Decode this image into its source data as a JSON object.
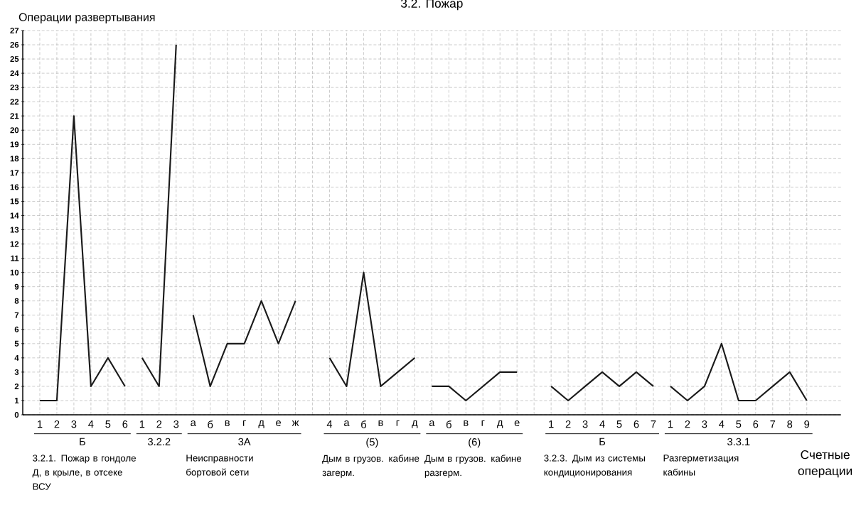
{
  "chart_data": {
    "type": "line",
    "title": "3.2. Пожар",
    "ylabel": "Операции развертывания",
    "xlabel": "Счетные операции",
    "categories": [
      "1",
      "2",
      "3",
      "4",
      "5",
      "6",
      "1",
      "2",
      "3",
      "а",
      "б",
      "в",
      "г",
      "д",
      "е",
      "ж",
      null,
      "4",
      "а",
      "б",
      "в",
      "г",
      "д",
      "а",
      "б",
      "в",
      "г",
      "д",
      "е",
      null,
      "1",
      "2",
      "3",
      "4",
      "5",
      "6",
      "7",
      "1",
      "2",
      "3",
      "4",
      "5",
      "6",
      "7",
      "8",
      "9"
    ],
    "series": [
      {
        "color": "#1a1a1a",
        "values": [
          1,
          1,
          21,
          2,
          4,
          2,
          null,
          null,
          null,
          null,
          null,
          null,
          null,
          null,
          null,
          null,
          null,
          null,
          null,
          null,
          null,
          null,
          null,
          null,
          null,
          null,
          null,
          null,
          null,
          null,
          null,
          null,
          null,
          null,
          null,
          null,
          null,
          null,
          null,
          null,
          null,
          null,
          null,
          null,
          null,
          null
        ]
      },
      {
        "color": "#1a1a1a",
        "values": [
          null,
          null,
          null,
          null,
          null,
          null,
          4,
          2,
          26,
          null,
          null,
          null,
          null,
          null,
          null,
          null,
          null,
          null,
          null,
          null,
          null,
          null,
          null,
          null,
          null,
          null,
          null,
          null,
          null,
          null,
          null,
          null,
          null,
          null,
          null,
          null,
          null,
          null,
          null,
          null,
          null,
          null,
          null,
          null,
          null,
          null
        ]
      },
      {
        "color": "#1a1a1a",
        "values": [
          null,
          null,
          null,
          null,
          null,
          null,
          null,
          null,
          null,
          7,
          2,
          5,
          5,
          8,
          5,
          8,
          null,
          null,
          null,
          null,
          null,
          null,
          null,
          null,
          null,
          null,
          null,
          null,
          null,
          null,
          null,
          null,
          null,
          null,
          null,
          null,
          null,
          null,
          null,
          null,
          null,
          null,
          null,
          null,
          null,
          null
        ]
      },
      {
        "color": "#1a1a1a",
        "values": [
          null,
          null,
          null,
          null,
          null,
          null,
          null,
          null,
          null,
          null,
          null,
          null,
          null,
          null,
          null,
          null,
          null,
          4,
          2,
          10,
          2,
          3,
          4,
          null,
          null,
          null,
          null,
          null,
          null,
          null,
          null,
          null,
          null,
          null,
          null,
          null,
          null,
          null,
          null,
          null,
          null,
          null,
          null,
          null,
          null,
          null
        ]
      },
      {
        "color": "#1a1a1a",
        "values": [
          null,
          null,
          null,
          null,
          null,
          null,
          null,
          null,
          null,
          null,
          null,
          null,
          null,
          null,
          null,
          null,
          null,
          null,
          null,
          null,
          null,
          null,
          null,
          2,
          2,
          1,
          2,
          3,
          3,
          null,
          null,
          null,
          null,
          null,
          null,
          null,
          null,
          null,
          null,
          null,
          null,
          null,
          null,
          null,
          null,
          null
        ]
      },
      {
        "color": "#1a1a1a",
        "values": [
          null,
          null,
          null,
          null,
          null,
          null,
          null,
          null,
          null,
          null,
          null,
          null,
          null,
          null,
          null,
          null,
          null,
          null,
          null,
          null,
          null,
          null,
          null,
          null,
          null,
          null,
          null,
          null,
          null,
          null,
          2,
          1,
          2,
          3,
          2,
          3,
          2,
          null,
          null,
          null,
          null,
          null,
          null,
          null,
          null,
          null
        ]
      },
      {
        "color": "#1a1a1a",
        "values": [
          null,
          null,
          null,
          null,
          null,
          null,
          null,
          null,
          null,
          null,
          null,
          null,
          null,
          null,
          null,
          null,
          null,
          null,
          null,
          null,
          null,
          null,
          null,
          null,
          null,
          null,
          null,
          null,
          null,
          null,
          null,
          null,
          null,
          null,
          null,
          null,
          null,
          2,
          1,
          2,
          5,
          1,
          1,
          2,
          3,
          1
        ]
      }
    ],
    "ylim": [
      0,
      27
    ],
    "yticks": [
      0,
      1,
      2,
      3,
      4,
      5,
      6,
      7,
      8,
      9,
      10,
      11,
      12,
      13,
      14,
      15,
      16,
      17,
      18,
      19,
      20,
      21,
      22,
      23,
      24,
      25,
      26,
      27
    ],
    "grid": true,
    "marker": "none",
    "line_style": "solid",
    "annotations": [
      "Б",
      "3.2.2",
      "3А",
      "(5)",
      "(6)",
      "Б",
      "3.3.1",
      "3.2.1. Пожар в гондоле Д, в крыле, в отсеке ВСУ",
      "Неисправности бортовой сети",
      "Дым в грузов. кабине загерм.",
      "Дым в грузов. кабине разгерм.",
      "3.2.3. Дым из системы кондиционирования",
      "Разгерметизация кабины"
    ]
  }
}
